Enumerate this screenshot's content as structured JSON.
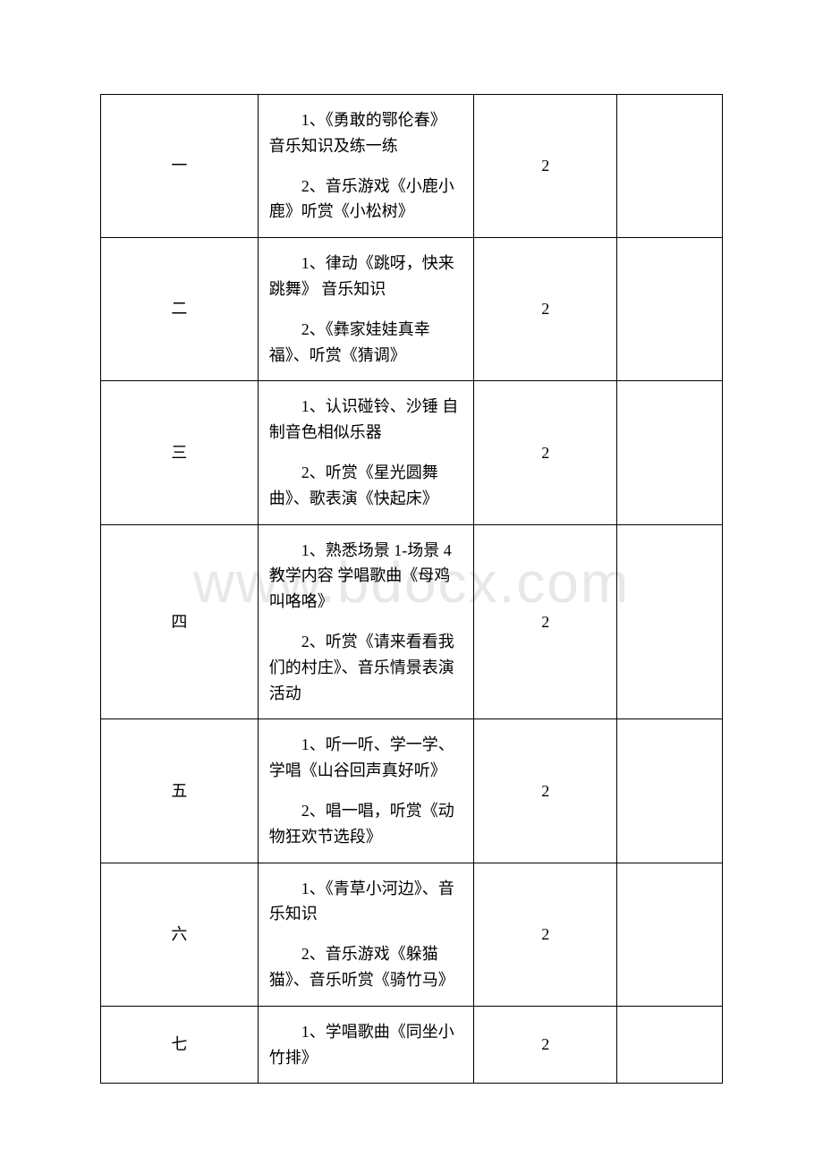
{
  "watermark": "www.bdocx.com",
  "table": {
    "border_color": "#000000",
    "font_size": 18,
    "text_color": "#000000",
    "background_color": "#ffffff",
    "watermark_color": "#e8e8e8",
    "rows": [
      {
        "num": "一",
        "content1": "1、《勇敢的鄂伦春》 音乐知识及练一练",
        "content2": "2、音乐游戏《小鹿小鹿》听赏《小松树》",
        "hours": "2"
      },
      {
        "num": "二",
        "content1": "1、律动《跳呀，快来跳舞》 音乐知识",
        "content2": "2、《彝家娃娃真幸福》、听赏《猜调》",
        "hours": "2"
      },
      {
        "num": "三",
        "content1": "1、认识碰铃、沙锤 自制音色相似乐器",
        "content2": "2、听赏《星光圆舞曲》、歌表演《快起床》",
        "hours": "2"
      },
      {
        "num": "四",
        "content1": "1、熟悉场景 1-场景 4 教学内容 学唱歌曲《母鸡叫咯咯》",
        "content2": "2、听赏《请来看看我们的村庄》、音乐情景表演活动",
        "hours": "2"
      },
      {
        "num": "五",
        "content1": "1、听一听、学一学、学唱《山谷回声真好听》",
        "content2": "2、唱一唱，听赏《动物狂欢节选段》",
        "hours": "2"
      },
      {
        "num": "六",
        "content1": "1、《青草小河边》、音乐知识",
        "content2": "2、音乐游戏《躲猫猫》、音乐听赏《骑竹马》",
        "hours": "2"
      },
      {
        "num": "七",
        "content1": "1、学唱歌曲《同坐小竹排》",
        "content2": "",
        "hours": "2"
      }
    ]
  }
}
